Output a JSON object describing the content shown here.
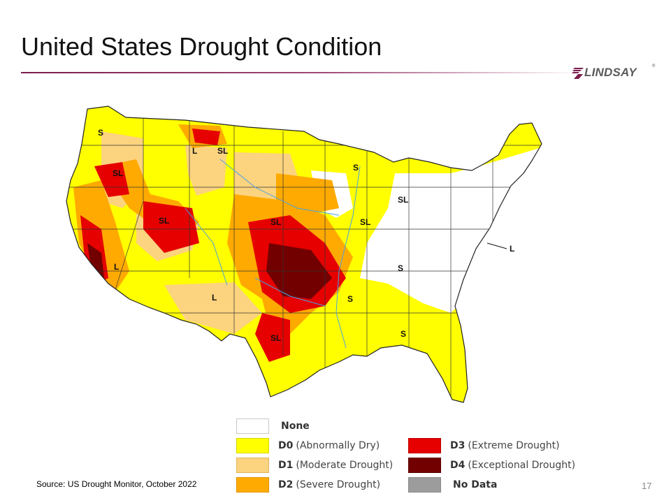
{
  "slide": {
    "title": "United States Drought Condition",
    "source": "Source: US Drought Monitor, October 2022",
    "page_number": "17"
  },
  "logo": {
    "text": "LINDSAY",
    "mark": "®"
  },
  "map": {
    "region_labels": [
      "S",
      "SL",
      "L",
      "SL",
      "S",
      "SL",
      "SL",
      "SL",
      "SL",
      "L",
      "L",
      "S",
      "S",
      "SL",
      "S",
      "L"
    ]
  },
  "legend": {
    "items": [
      {
        "code": "",
        "desc": "None",
        "color": "#ffffff"
      },
      {
        "code": "D0",
        "desc": "(Abnormally Dry)",
        "color": "#ffff00"
      },
      {
        "code": "D1",
        "desc": "(Moderate Drought)",
        "color": "#fcd37f"
      },
      {
        "code": "D2",
        "desc": "(Severe Drought)",
        "color": "#ffaa00"
      },
      {
        "code": "D3",
        "desc": "(Extreme Drought)",
        "color": "#e60000"
      },
      {
        "code": "D4",
        "desc": "(Exceptional Drought)",
        "color": "#730000"
      },
      {
        "code": "",
        "desc": "No Data",
        "color": "#9c9c9c"
      }
    ]
  }
}
